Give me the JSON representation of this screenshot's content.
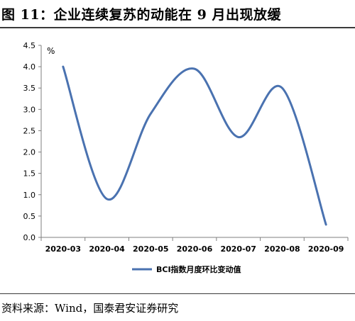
{
  "header": {
    "title": "图 11：企业连续复苏的动能在 9 月出现放缓"
  },
  "chart_data": {
    "type": "line",
    "categories": [
      "2020-03",
      "2020-04",
      "2020-05",
      "2020-06",
      "2020-07",
      "2020-08",
      "2020-09"
    ],
    "series": [
      {
        "name": "BCI指数月度环比变动值",
        "values": [
          4.0,
          0.9,
          2.9,
          3.95,
          2.35,
          3.5,
          0.3
        ],
        "color": "#4a72b0"
      }
    ],
    "yunit": "%",
    "ylim": [
      0,
      4.5
    ],
    "yticks": [
      "0.0",
      "0.5",
      "1.0",
      "1.5",
      "2.0",
      "2.5",
      "3.0",
      "3.5",
      "4.0",
      "4.5"
    ],
    "grid": false,
    "smooth": true,
    "legend_position": "bottom"
  },
  "footer": {
    "source": "资料来源：Wind，国泰君安证券研究"
  }
}
